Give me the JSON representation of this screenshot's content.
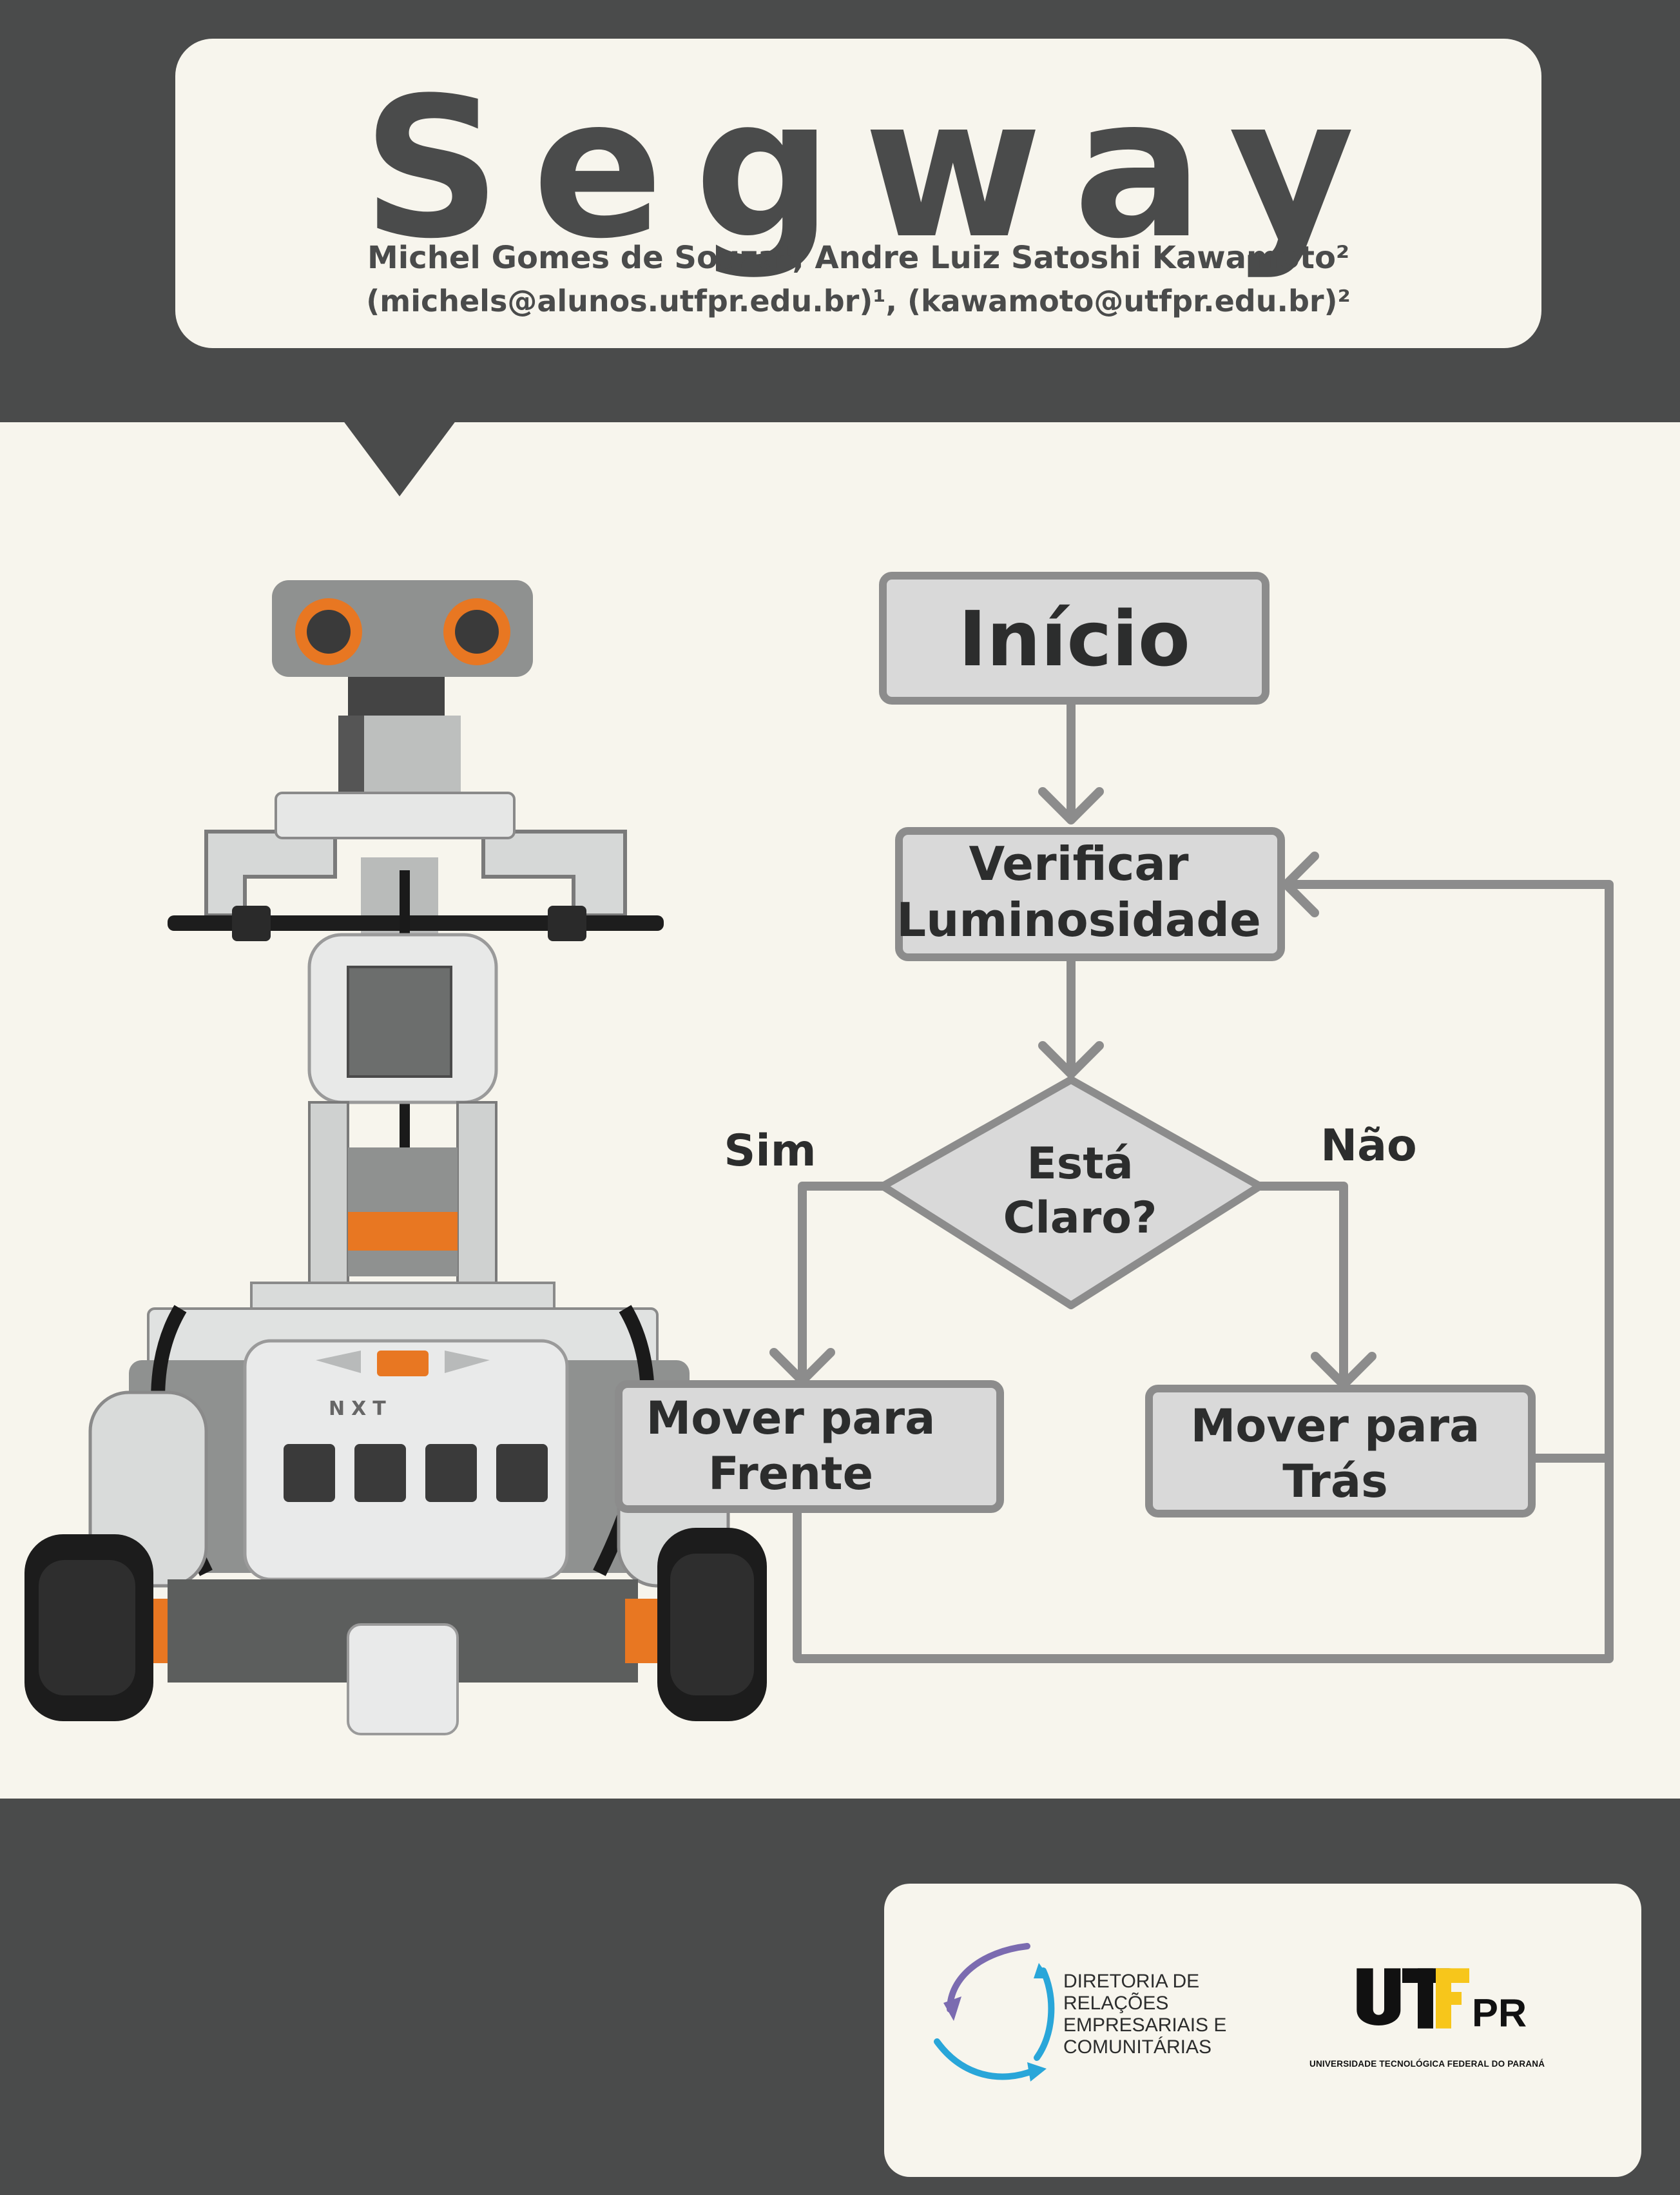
{
  "header": {
    "title": "Segway",
    "authors": "Michel Gomes de Souza¹, Andre Luiz Satoshi Kawamoto²",
    "emails": "(michels@alunos.utfpr.edu.br)¹, (kawamoto@utfpr.edu.br)²"
  },
  "flowchart": {
    "start": "Início",
    "check": [
      "Verificar",
      "Luminosidade"
    ],
    "decision": [
      "Está",
      "Claro?"
    ],
    "yes_label": "Sim",
    "no_label": "Não",
    "forward": [
      "Mover para",
      "Frente"
    ],
    "backward": [
      "Mover para",
      "Trás"
    ]
  },
  "robot": {
    "brand": "NXT"
  },
  "footer": {
    "directorate_lines": [
      "DIRETORIA DE",
      "RELAÇÕES",
      "EMPRESARIAIS E",
      "COMUNITÁRIAS"
    ],
    "university_logo": "UTFPR",
    "university_name": "UNIVERSIDADE TECNOLÓGICA FEDERAL DO PARANÁ"
  },
  "colors": {
    "band": "#4a4b4b",
    "paper": "#f7f5ed",
    "box_fill": "#d9d9d9",
    "box_stroke": "#8c8c8c",
    "robot_accent": "#e87722"
  }
}
